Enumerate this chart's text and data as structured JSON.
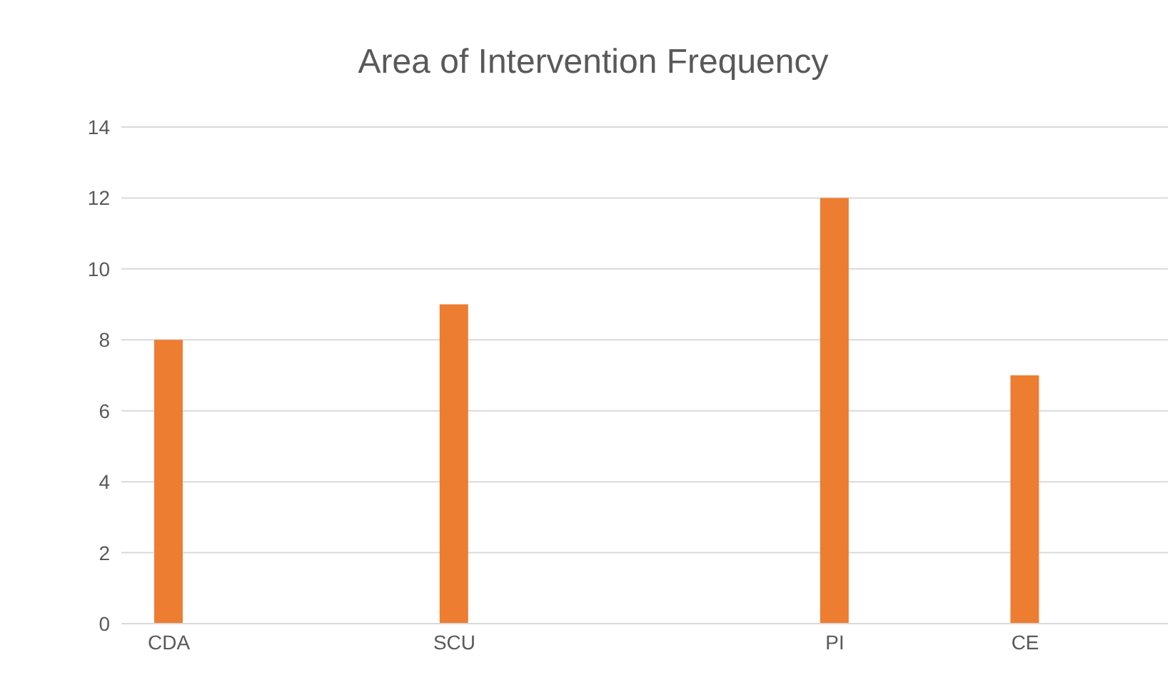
{
  "chart_data": {
    "type": "bar",
    "title": "Area of Intervention Frequency",
    "categories": [
      "CDA",
      null,
      null,
      "SCU",
      null,
      null,
      null,
      "PI",
      null,
      "CE",
      null
    ],
    "values": [
      8,
      null,
      null,
      9,
      null,
      null,
      null,
      12,
      null,
      7,
      null
    ],
    "color": "#ed7d31",
    "ylim": [
      0,
      14
    ],
    "yticks": [
      0,
      2,
      4,
      6,
      8,
      10,
      12,
      14
    ],
    "grid": "y"
  }
}
